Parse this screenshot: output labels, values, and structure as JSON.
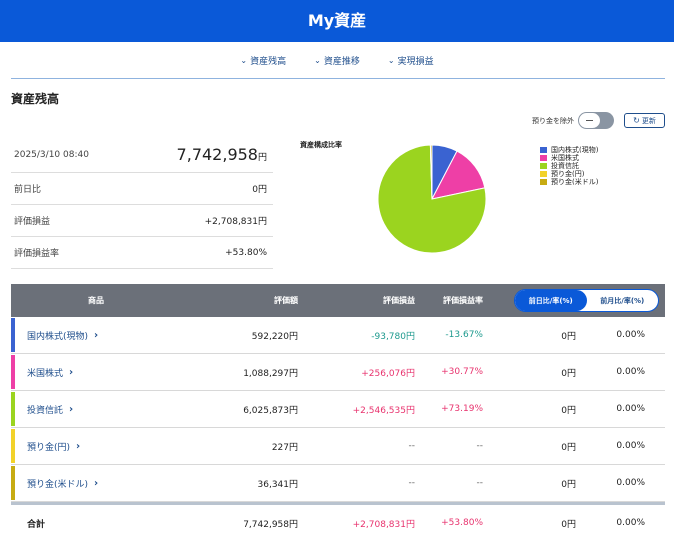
{
  "header": {
    "title": "My資産"
  },
  "nav": {
    "items": [
      {
        "icon": "chevron-down-icon",
        "label": "資産残高"
      },
      {
        "icon": "chevron-down-icon",
        "label": "資産推移"
      },
      {
        "icon": "chevron-down-icon",
        "label": "実現損益"
      }
    ]
  },
  "section": {
    "title": "資産残高"
  },
  "controls": {
    "toggle_label": "預り金を除外",
    "toggle_on": false,
    "update_icon": "refresh-icon",
    "update_label": "更新"
  },
  "summary": {
    "datetime": "2025/3/10 08:40",
    "total_value": "7,742,958",
    "yen": "円",
    "rows": [
      {
        "label": "前日比",
        "value": "0円"
      },
      {
        "label": "評価損益",
        "value": "+2,708,831円"
      },
      {
        "label": "評価損益率",
        "value": "+53.80%"
      }
    ]
  },
  "pie": {
    "title": "資産構成比率",
    "slices": [
      {
        "name": "国内株式(現物)",
        "value": 592220,
        "color": "#3a63d1"
      },
      {
        "name": "米国株式",
        "value": 1088297,
        "color": "#ee3fa6"
      },
      {
        "name": "投資信託",
        "value": 6025873,
        "color": "#9bd41f"
      },
      {
        "name": "預り金(円)",
        "value": 227,
        "color": "#f2d22a"
      },
      {
        "name": "預り金(米ドル)",
        "value": 36341,
        "color": "#c7ab12"
      }
    ]
  },
  "table": {
    "headers": {
      "name": "商品",
      "eval": "評価額",
      "pl": "評価損益",
      "rate": "評価損益率",
      "seg_on": "前日比/率(%)",
      "seg_off": "前月比/率(%)"
    },
    "rows": [
      {
        "name": "国内株式(現物)",
        "color": "#3a63d1",
        "eval": "592,220円",
        "pl": "-93,780円",
        "rate": "-13.67%",
        "day": "0円",
        "dayr": "0.00%",
        "sign": "neg"
      },
      {
        "name": "米国株式",
        "color": "#ee3fa6",
        "eval": "1,088,297円",
        "pl": "+256,076円",
        "rate": "+30.77%",
        "day": "0円",
        "dayr": "0.00%",
        "sign": "pos"
      },
      {
        "name": "投資信託",
        "color": "#9bd41f",
        "eval": "6,025,873円",
        "pl": "+2,546,535円",
        "rate": "+73.19%",
        "day": "0円",
        "dayr": "0.00%",
        "sign": "pos"
      },
      {
        "name": "預り金(円)",
        "color": "#f2d22a",
        "eval": "227円",
        "pl": "--",
        "rate": "--",
        "day": "0円",
        "dayr": "0.00%",
        "sign": "none"
      },
      {
        "name": "預り金(米ドル)",
        "color": "#c7ab12",
        "eval": "36,341円",
        "pl": "--",
        "rate": "--",
        "day": "0円",
        "dayr": "0.00%",
        "sign": "none"
      }
    ],
    "total": {
      "name": "合計",
      "eval": "7,742,958円",
      "pl": "+2,708,831円",
      "rate": "+53.80%",
      "day": "0円",
      "dayr": "0.00%"
    }
  }
}
